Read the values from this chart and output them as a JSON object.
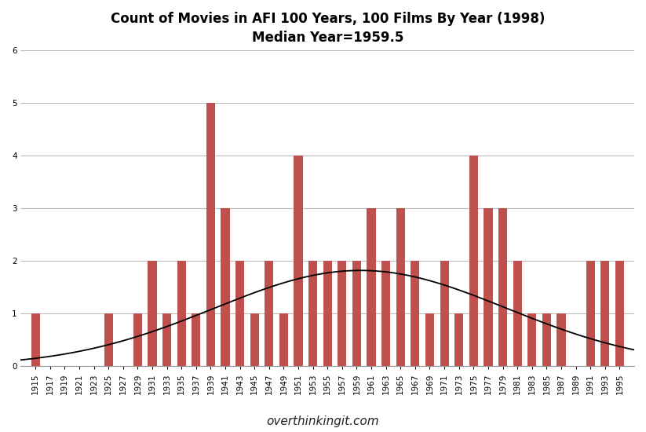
{
  "title_line1": "Count of Movies in AFI 100 Years, 100 Films By Year (1998)",
  "title_line2": "Median Year=1959.5",
  "watermark": "overthinkingit.com",
  "bar_color": "#c0504d",
  "line_color": "#000000",
  "background_color": "#ffffff",
  "grid_color": "#bbbbbb",
  "ylim": [
    0,
    6
  ],
  "yticks": [
    0,
    1,
    2,
    3,
    4,
    5,
    6
  ],
  "bar_years": [
    1915,
    1917,
    1919,
    1921,
    1923,
    1925,
    1927,
    1929,
    1931,
    1933,
    1935,
    1937,
    1939,
    1941,
    1943,
    1945,
    1947,
    1949,
    1951,
    1953,
    1955,
    1957,
    1959,
    1961,
    1963,
    1965,
    1967,
    1969,
    1971,
    1973,
    1975,
    1977,
    1979,
    1981,
    1983,
    1985,
    1987,
    1989,
    1991,
    1993,
    1995
  ],
  "bar_counts": [
    1,
    0,
    0,
    0,
    0,
    1,
    0,
    1,
    2,
    1,
    2,
    1,
    5,
    3,
    2,
    1,
    2,
    1,
    4,
    2,
    2,
    2,
    2,
    3,
    2,
    3,
    2,
    1,
    2,
    1,
    4,
    3,
    3,
    2,
    1,
    1,
    1,
    0,
    2,
    2,
    2
  ],
  "bell_mean": 1959.5,
  "bell_std": 20.0,
  "bell_scale": 1.82,
  "xlim_left": 1913,
  "xlim_right": 1997,
  "title_fontsize": 12,
  "tick_fontsize": 7.5,
  "watermark_fontsize": 11
}
